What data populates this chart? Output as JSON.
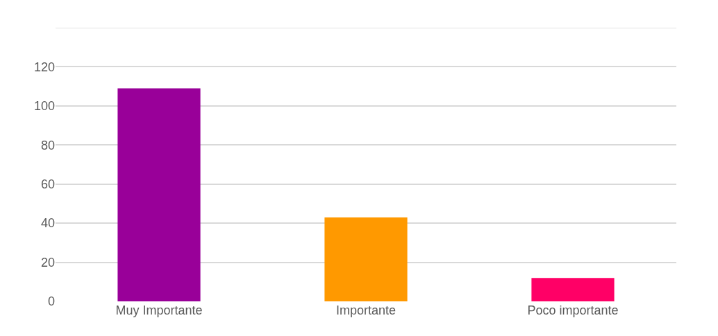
{
  "chart_data": {
    "type": "bar",
    "categories": [
      "Muy Importante",
      "Importante",
      "Poco importante"
    ],
    "values": [
      109,
      43,
      12
    ],
    "colors": [
      "#990099",
      "#ff9900",
      "#ff0066"
    ],
    "ylim": [
      0,
      140
    ],
    "yticks": [
      0,
      20,
      40,
      60,
      80,
      100,
      120,
      {
        "value": 140,
        "label": null
      }
    ],
    "grid": "y"
  }
}
